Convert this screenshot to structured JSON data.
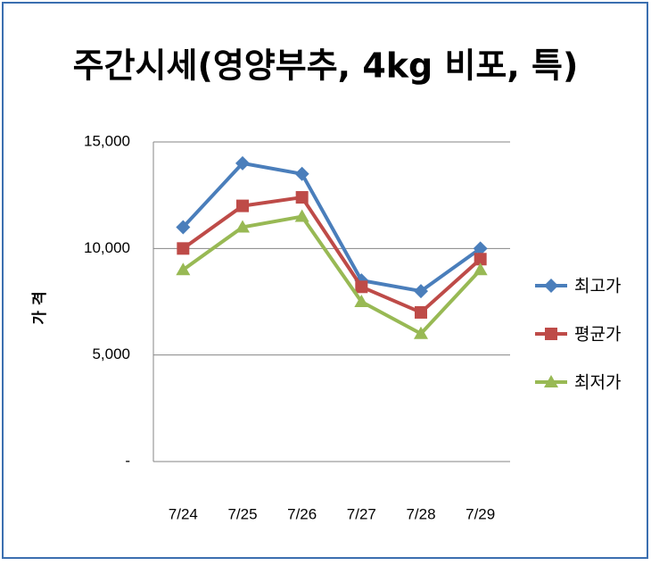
{
  "chart_data": {
    "type": "line",
    "title": "주간시세(영양부추, 4kg 비포, 특)",
    "y_label": "가 격",
    "categories": [
      "7/24",
      "7/25",
      "7/26",
      "7/27",
      "7/28",
      "7/29"
    ],
    "series": [
      {
        "name": "최고가",
        "color": "#4a7ebb",
        "marker": "diamond",
        "values": [
          11000,
          14000,
          13500,
          8500,
          8000,
          10000
        ]
      },
      {
        "name": "평균가",
        "color": "#be4b48",
        "marker": "square",
        "values": [
          10000,
          12000,
          12400,
          8200,
          7000,
          9500
        ]
      },
      {
        "name": "최저가",
        "color": "#98b954",
        "marker": "triangle",
        "values": [
          9000,
          11000,
          11500,
          7500,
          6000,
          9000
        ]
      }
    ],
    "ylim": [
      0,
      15000
    ],
    "yticks": [
      {
        "value": 0,
        "label": "-"
      },
      {
        "value": 5000,
        "label": "5,000"
      },
      {
        "value": 10000,
        "label": "10,000"
      },
      {
        "value": 15000,
        "label": "15,000"
      }
    ],
    "grid": true,
    "legend": "right"
  }
}
